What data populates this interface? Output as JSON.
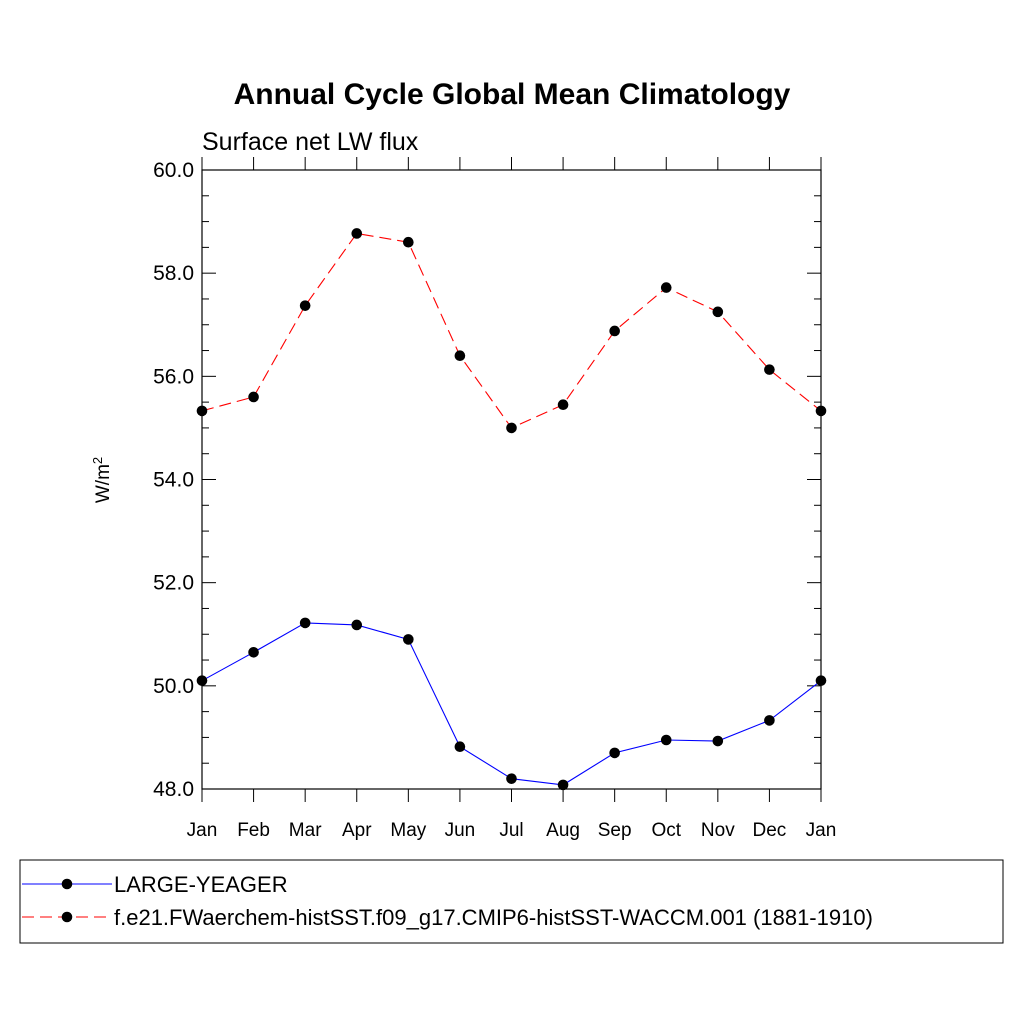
{
  "chart_data": {
    "type": "line",
    "title": "Annual Cycle Global Mean Climatology",
    "subtitle": "Surface net LW flux",
    "ylabel": "W/m",
    "ylabel_superscript": "2",
    "ylim": [
      48.0,
      60.0
    ],
    "yticks": [
      "48.0",
      "50.0",
      "52.0",
      "54.0",
      "56.0",
      "58.0",
      "60.0"
    ],
    "categories": [
      "Jan",
      "Feb",
      "Mar",
      "Apr",
      "May",
      "Jun",
      "Jul",
      "Aug",
      "Sep",
      "Oct",
      "Nov",
      "Dec",
      "Jan"
    ],
    "grid": false,
    "legend_position": "bottom",
    "series": [
      {
        "name": "LARGE-YEAGER",
        "color": "#0000ff",
        "dash": "solid",
        "values": [
          50.1,
          50.65,
          51.22,
          51.18,
          50.9,
          48.82,
          48.2,
          48.08,
          48.7,
          48.95,
          48.93,
          49.33,
          50.1
        ]
      },
      {
        "name": "f.e21.FWaerchem-histSST.f09_g17.CMIP6-histSST-WACCM.001 (1881-1910)",
        "color": "#ff0000",
        "dash": "dashed",
        "values": [
          55.33,
          55.6,
          57.37,
          58.77,
          58.6,
          56.4,
          55.0,
          55.45,
          56.88,
          57.72,
          57.25,
          56.13,
          55.33
        ]
      }
    ]
  }
}
